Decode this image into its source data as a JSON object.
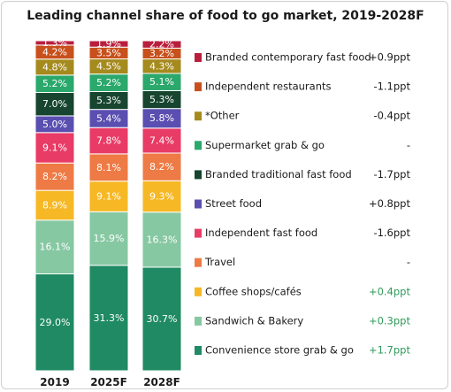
{
  "chart_data": {
    "type": "bar",
    "stacked": true,
    "title": "Leading channel share of food to go market, 2019-2028F",
    "categories": [
      "2019",
      "2025F",
      "2028F"
    ],
    "series": [
      {
        "name": "Convenience store grab & go",
        "color": "#1f8a63",
        "change": "+1.7ppt",
        "change_color": "#2e9a5a",
        "values": [
          29.0,
          31.3,
          30.7
        ],
        "labels": [
          "29.0%",
          "31.3%",
          "30.7%"
        ]
      },
      {
        "name": "Sandwich & Bakery",
        "color": "#86c8a2",
        "change": "+0.3ppt",
        "change_color": "#2e9a5a",
        "values": [
          16.1,
          15.9,
          16.3
        ],
        "labels": [
          "16.1%",
          "15.9%",
          "16.3%"
        ]
      },
      {
        "name": "Coffee shops/cafés",
        "color": "#f6b825",
        "change": "+0.4ppt",
        "change_color": "#2e9a5a",
        "values": [
          8.9,
          9.1,
          9.3
        ],
        "labels": [
          "8.9%",
          "9.1%",
          "9.3%"
        ]
      },
      {
        "name": "Travel",
        "color": "#ee7a45",
        "change": "-",
        "change_color": "#1a1a1a",
        "values": [
          8.2,
          8.1,
          8.2
        ],
        "labels": [
          "8.2%",
          "8.1%",
          "8.2%"
        ]
      },
      {
        "name": "Independent fast food",
        "color": "#e83b66",
        "change": "-1.6ppt",
        "change_color": "#1a1a1a",
        "values": [
          9.1,
          7.8,
          7.4
        ],
        "labels": [
          "9.1%",
          "7.8%",
          "7.4%"
        ]
      },
      {
        "name": "Street food",
        "color": "#5a4fb0",
        "change": "+0.8ppt",
        "change_color": "#1a1a1a",
        "values": [
          5.0,
          5.4,
          5.8
        ],
        "labels": [
          "5.0%",
          "5.4%",
          "5.8%"
        ]
      },
      {
        "name": "Branded traditional fast food",
        "color": "#17452f",
        "change": "-1.7ppt",
        "change_color": "#1a1a1a",
        "values": [
          7.0,
          5.3,
          5.3
        ],
        "labels": [
          "7.0%",
          "5.3%",
          "5.3%"
        ]
      },
      {
        "name": "Supermarket grab & go",
        "color": "#2ba86c",
        "change": "-",
        "change_color": "#1a1a1a",
        "values": [
          5.2,
          5.2,
          5.1
        ],
        "labels": [
          "5.2%",
          "5.2%",
          "5.1%"
        ]
      },
      {
        "name": "*Other",
        "color": "#a58a1e",
        "change": "-0.4ppt",
        "change_color": "#1a1a1a",
        "values": [
          4.8,
          4.5,
          4.3
        ],
        "labels": [
          "4.8%",
          "4.5%",
          "4.3%"
        ]
      },
      {
        "name": "Independent restaurants",
        "color": "#c8501c",
        "change": "-1.1ppt",
        "change_color": "#1a1a1a",
        "values": [
          4.2,
          3.5,
          3.2
        ],
        "labels": [
          "4.2%",
          "3.5%",
          "3.2%"
        ]
      },
      {
        "name": "Branded contemporary fast food",
        "color": "#b81f3d",
        "change": "+0.9ppt",
        "change_color": "#1a1a1a",
        "values": [
          1.3,
          1.9,
          2.2
        ],
        "labels": [
          "1.3%",
          "1.9%",
          "2.2%"
        ]
      }
    ]
  }
}
